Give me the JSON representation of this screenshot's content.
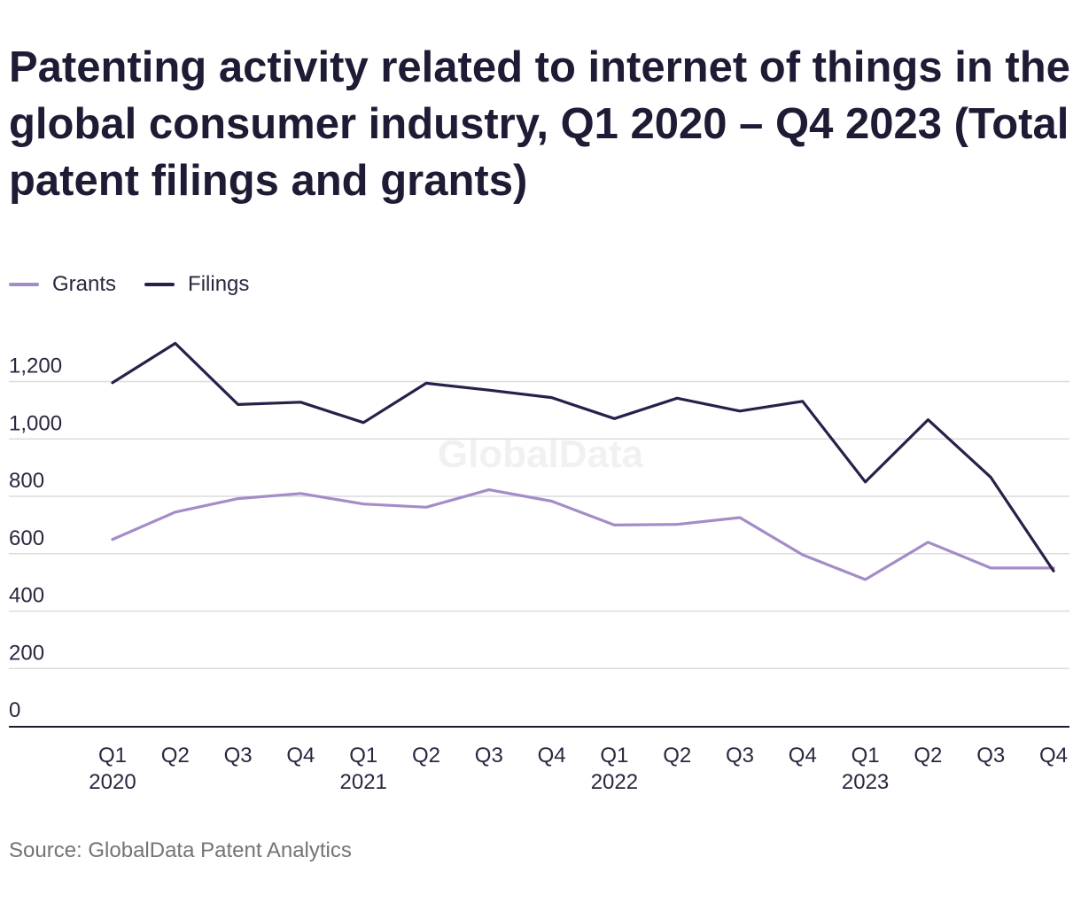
{
  "title": "Patenting activity related to internet of things in the global consumer industry, Q1 2020 – Q4 2023 (Total patent filings and grants)",
  "source": "Source: GlobalData Patent Analytics",
  "watermark": "GlobalData",
  "colors": {
    "grants": "#a48cc8",
    "filings": "#2b1f4a",
    "grid": "#dcdcdc",
    "axis": "#1d1a33"
  },
  "chart_data": {
    "type": "line",
    "title": "Patenting activity related to internet of things in the global consumer industry, Q1 2020 – Q4 2023 (Total patent filings and grants)",
    "xlabel": "",
    "ylabel": "",
    "ylim": [
      0,
      1300
    ],
    "yticks": [
      0,
      200,
      400,
      600,
      800,
      1000,
      1200
    ],
    "ytick_labels": [
      "0",
      "200",
      "400",
      "600",
      "800",
      "1,000",
      "1,200"
    ],
    "grid": true,
    "legend_position": "top-left",
    "categories": [
      {
        "quarter": "Q1",
        "year": "2020"
      },
      {
        "quarter": "Q2",
        "year": ""
      },
      {
        "quarter": "Q3",
        "year": ""
      },
      {
        "quarter": "Q4",
        "year": ""
      },
      {
        "quarter": "Q1",
        "year": "2021"
      },
      {
        "quarter": "Q2",
        "year": ""
      },
      {
        "quarter": "Q3",
        "year": ""
      },
      {
        "quarter": "Q4",
        "year": ""
      },
      {
        "quarter": "Q1",
        "year": "2022"
      },
      {
        "quarter": "Q2",
        "year": ""
      },
      {
        "quarter": "Q3",
        "year": ""
      },
      {
        "quarter": "Q4",
        "year": ""
      },
      {
        "quarter": "Q1",
        "year": "2023"
      },
      {
        "quarter": "Q2",
        "year": ""
      },
      {
        "quarter": "Q3",
        "year": ""
      },
      {
        "quarter": "Q4",
        "year": ""
      }
    ],
    "series": [
      {
        "name": "Grants",
        "color": "#a48cc8",
        "values": [
          650,
          745,
          792,
          810,
          773,
          762,
          823,
          783,
          700,
          702,
          726,
          596,
          510,
          640,
          550,
          550
        ]
      },
      {
        "name": "Filings",
        "color": "#2b1f4a",
        "values": [
          1196,
          1333,
          1120,
          1128,
          1057,
          1194,
          1170,
          1144,
          1071,
          1142,
          1097,
          1131,
          850,
          1067,
          866,
          540
        ]
      }
    ]
  }
}
